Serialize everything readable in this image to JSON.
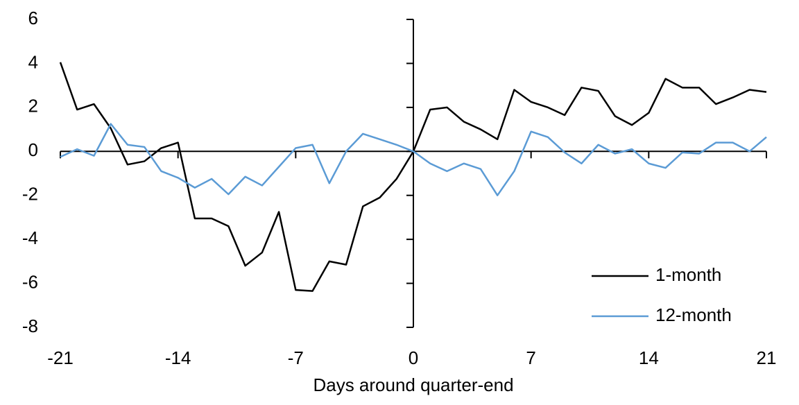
{
  "chart_data": {
    "type": "line",
    "x_label": "Days around quarter-end",
    "x": [
      -21,
      -20,
      -19,
      -18,
      -17,
      -16,
      -15,
      -14,
      -13,
      -12,
      -11,
      -10,
      -9,
      -8,
      -7,
      -6,
      -5,
      -4,
      -3,
      -2,
      -1,
      0,
      1,
      2,
      3,
      4,
      5,
      6,
      7,
      8,
      9,
      10,
      11,
      12,
      13,
      14,
      15,
      16,
      17,
      18,
      19,
      20,
      21
    ],
    "series": [
      {
        "name": "1-month",
        "color": "#000000",
        "values": [
          4.05,
          1.9,
          2.15,
          1.05,
          -0.6,
          -0.45,
          0.15,
          0.4,
          -3.05,
          -3.05,
          -3.4,
          -5.2,
          -4.6,
          -2.75,
          -6.3,
          -6.35,
          -5.0,
          -5.15,
          -2.5,
          -2.1,
          -1.25,
          0,
          1.9,
          2.0,
          1.35,
          1.0,
          0.55,
          2.8,
          2.25,
          2.0,
          1.65,
          2.9,
          2.75,
          1.6,
          1.2,
          1.75,
          3.3,
          2.9,
          2.9,
          2.15,
          2.45,
          2.8,
          2.7
        ]
      },
      {
        "name": "12-month",
        "color": "#5b9bd5",
        "values": [
          -0.25,
          0.1,
          -0.2,
          1.25,
          0.3,
          0.2,
          -0.9,
          -1.2,
          -1.65,
          -1.25,
          -1.95,
          -1.15,
          -1.55,
          -0.7,
          0.15,
          0.3,
          -1.45,
          0,
          0.8,
          0.55,
          0.3,
          0,
          -0.55,
          -0.9,
          -0.55,
          -0.8,
          -2.0,
          -0.9,
          0.9,
          0.65,
          -0.05,
          -0.55,
          0.3,
          -0.1,
          0.1,
          -0.55,
          -0.75,
          -0.05,
          -0.1,
          0.4,
          0.4,
          0,
          0.65
        ]
      }
    ],
    "xlim": [
      -21,
      21
    ],
    "xticks": [
      -21,
      -14,
      -7,
      0,
      7,
      14,
      21
    ],
    "ylim": [
      -8,
      6
    ],
    "yticks": [
      -8,
      -6,
      -4,
      -2,
      0,
      2,
      4,
      6
    ],
    "legend": "lower right"
  }
}
